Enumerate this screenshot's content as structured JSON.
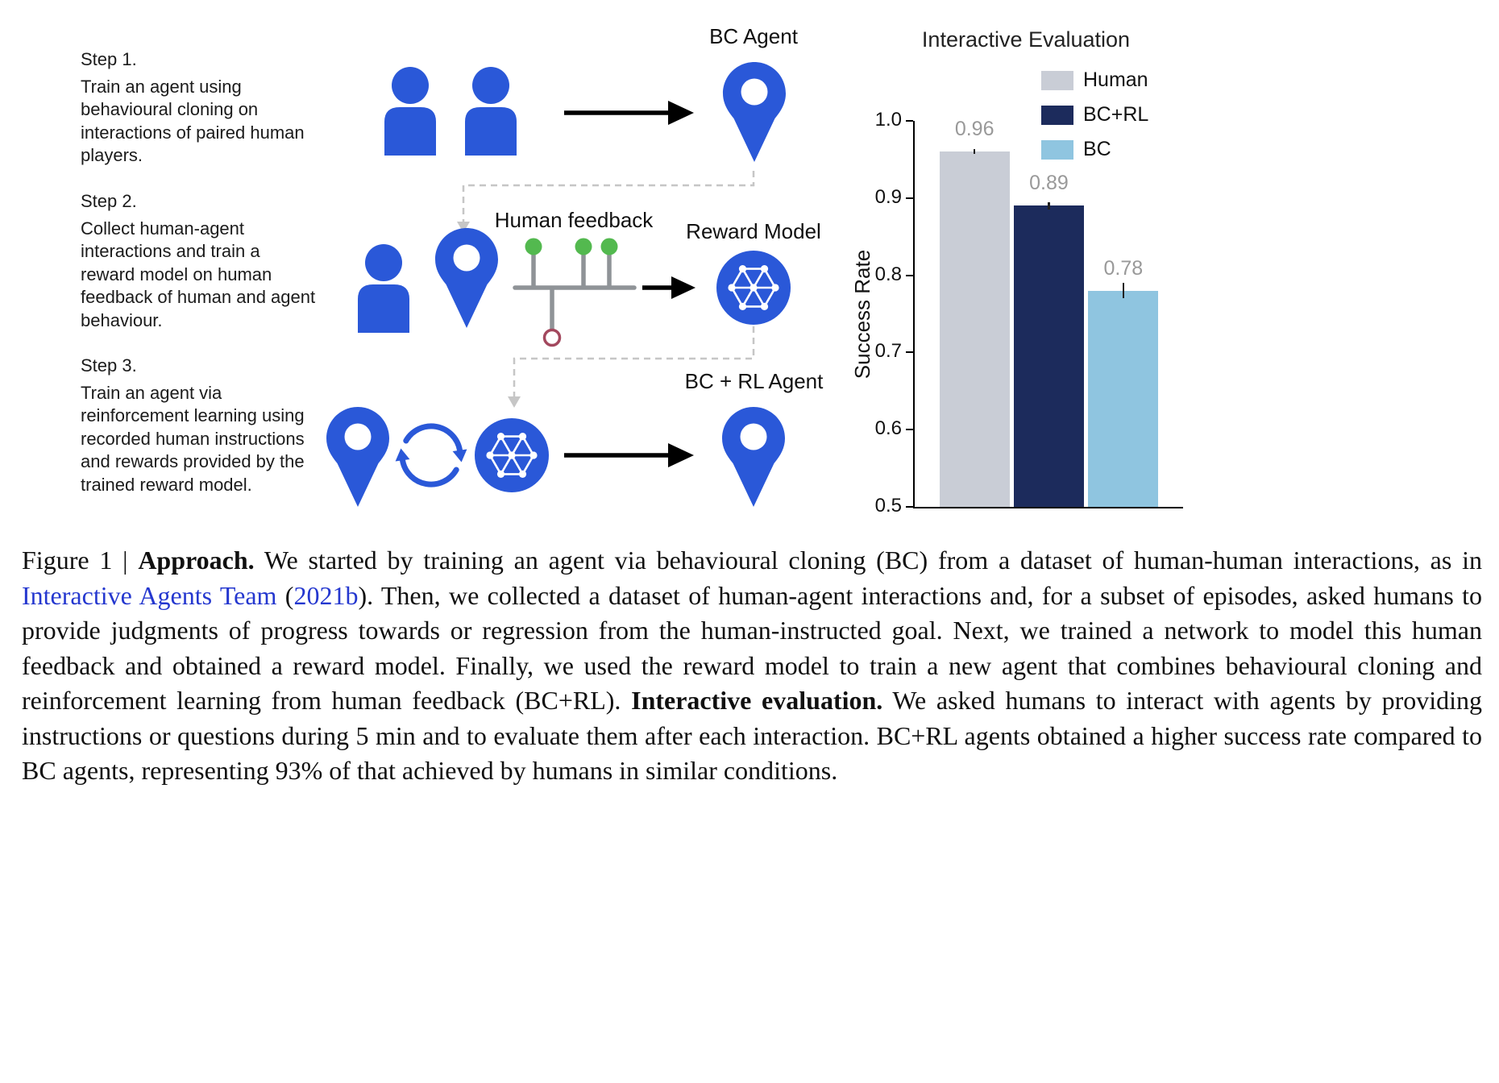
{
  "figure": {
    "steps": [
      {
        "label": "Step 1.",
        "text": "Train an agent using behavioural cloning on interactions of paired human players."
      },
      {
        "label": "Step 2.",
        "text": "Collect human-agent interactions and train a reward model on human feedback of human and agent behaviour."
      },
      {
        "label": "Step 3.",
        "text": "Train an agent via reinforcement learning using recorded human instructions and rewards provided by the trained reward model."
      }
    ],
    "labels": {
      "bc_agent": "BC Agent",
      "human_feedback": "Human feedback",
      "reward_model": "Reward Model",
      "bc_rl_agent": "BC + RL Agent"
    },
    "colors": {
      "icon_blue": "#2a58d8",
      "feedback_positive_green": "#53b94f",
      "feedback_negative_red": "#a3485e",
      "connector_gray": "#c6c6c6",
      "arrow_black": "#000000"
    }
  },
  "chart_data": {
    "type": "bar",
    "title": "Interactive Evaluation",
    "ylabel": "Success Rate",
    "xlabel": "",
    "ylim": [
      0.5,
      1.0
    ],
    "yticks": [
      0.5,
      0.6,
      0.7,
      0.8,
      0.9,
      1.0
    ],
    "categories": [
      "Human",
      "BC+RL",
      "BC"
    ],
    "values": [
      0.96,
      0.89,
      0.78
    ],
    "errors": [
      0.003,
      0.005,
      0.01
    ],
    "value_labels": [
      "0.96",
      "0.89",
      "0.78"
    ],
    "bar_colors": [
      "#c9cdd6",
      "#1c2b5c",
      "#8fc5e0"
    ],
    "value_label_color": "#999999",
    "legend": [
      {
        "label": "Human",
        "color": "#c9cdd6"
      },
      {
        "label": "BC+RL",
        "color": "#1c2b5c"
      },
      {
        "label": "BC",
        "color": "#8fc5e0"
      }
    ],
    "legend_position": "top-right",
    "grid": false
  },
  "caption": {
    "segments": [
      {
        "text": "Figure 1 | ",
        "style": "regular"
      },
      {
        "text": "Approach.",
        "style": "bold"
      },
      {
        "text": " We started by training an agent via behavioural cloning (BC) from a dataset of human-human interactions, as in ",
        "style": "regular"
      },
      {
        "text": "Interactive Agents Team",
        "style": "link"
      },
      {
        "text": " (",
        "style": "regular"
      },
      {
        "text": "2021b",
        "style": "link"
      },
      {
        "text": "). Then, we collected a dataset of human-agent interactions and, for a subset of episodes, asked humans to provide judgments of progress towards or regression from the human-instructed goal. Next, we trained a network to model this human feedback and obtained a reward model. Finally, we used the reward model to train a new agent that combines behavioural cloning and reinforcement learning from human feedback (BC+RL). ",
        "style": "regular"
      },
      {
        "text": "Interactive evaluation.",
        "style": "bold"
      },
      {
        "text": " We asked humans to interact with agents by providing instructions or questions during 5 min and to evaluate them after each interaction. BC+RL agents obtained a higher success rate compared to BC agents, representing 93% of that achieved by humans in similar conditions.",
        "style": "regular"
      }
    ],
    "link_color": "#2437cf"
  }
}
